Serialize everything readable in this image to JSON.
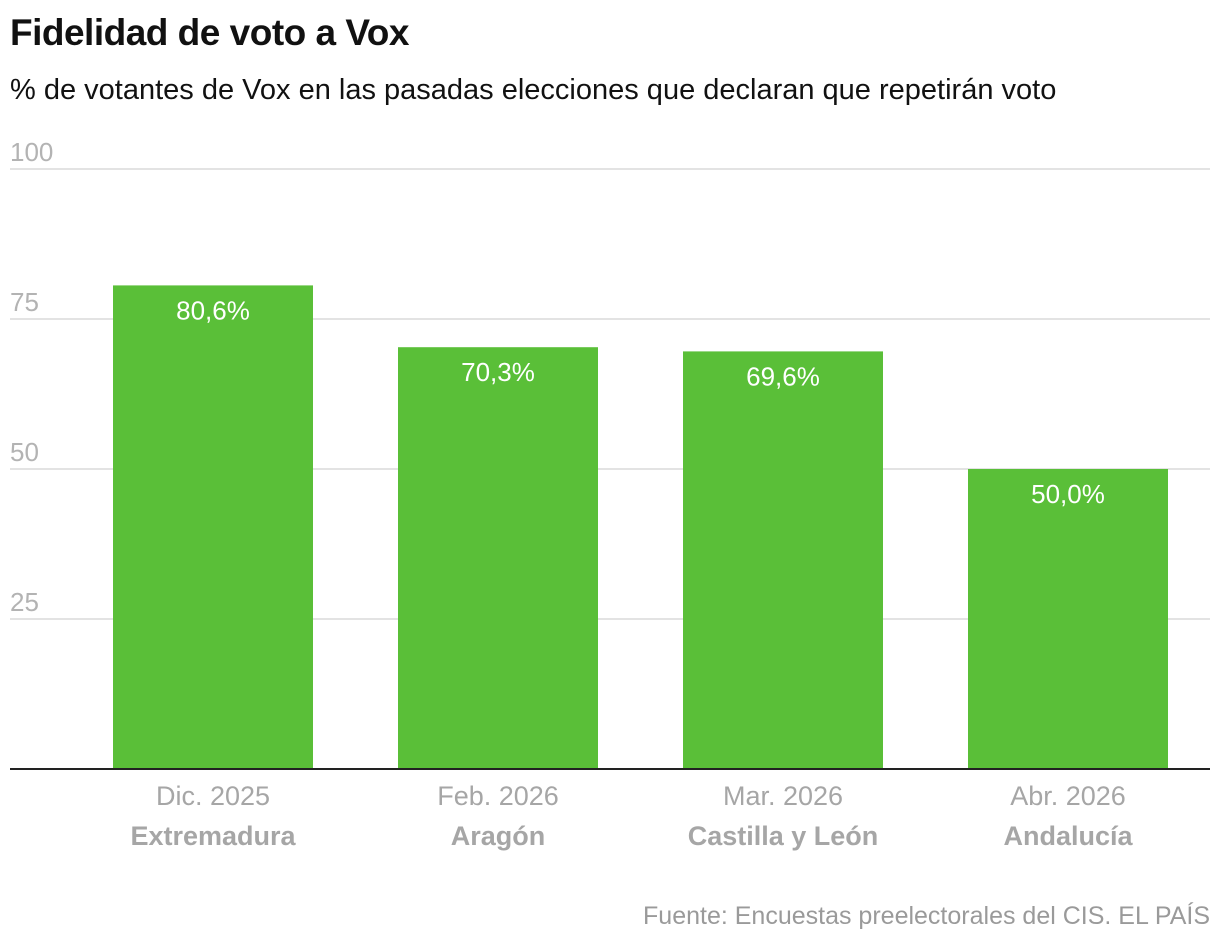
{
  "title": "Fidelidad de voto a Vox",
  "subtitle": "% de votantes de Vox en las pasadas elecciones que declaran que repetirán voto",
  "source": "Fuente: Encuestas preelectorales del CIS. EL PAÍS",
  "colors": {
    "bar": "#5abf38",
    "grid": "#e3e3e3",
    "axis": "#222222"
  },
  "chart_data": {
    "type": "bar",
    "categories": [
      "Extremadura",
      "Aragón",
      "Castilla y León",
      "Andalucía"
    ],
    "dates": [
      "Dic. 2025",
      "Feb. 2026",
      "Mar. 2026",
      "Abr. 2026"
    ],
    "values": [
      80.6,
      70.3,
      69.6,
      50.0
    ],
    "value_labels": [
      "80,6%",
      "70,3%",
      "69,6%",
      "50,0%"
    ],
    "ylim": [
      0,
      100
    ],
    "yticks": [
      25,
      50,
      75,
      100
    ],
    "grid": true,
    "legend": "none"
  }
}
